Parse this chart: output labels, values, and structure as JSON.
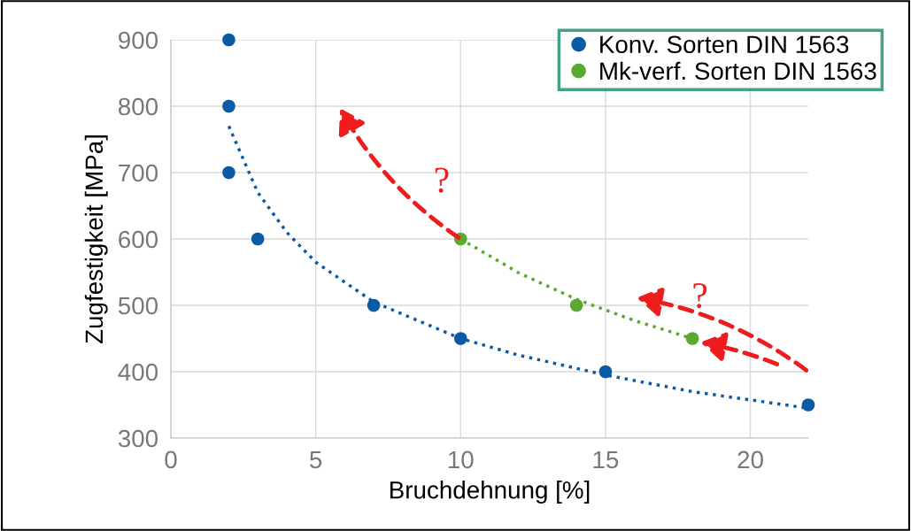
{
  "chart_data": {
    "type": "scatter",
    "xlabel": "Bruchdehnung [%]",
    "ylabel": "Zugfestigkeit [MPa]",
    "xlim": [
      0,
      22
    ],
    "ylim": [
      300,
      900
    ],
    "xticks": [
      0,
      5,
      10,
      15,
      20
    ],
    "yticks": [
      300,
      400,
      500,
      600,
      700,
      800,
      900
    ],
    "grid": true,
    "legend": "top right",
    "marker": "circle",
    "annotations": [
      "?",
      "?"
    ],
    "series": [
      {
        "name": "Konv. Sorten DIN 1563",
        "color": "#0b5aa6",
        "x": [
          2,
          2,
          2,
          3,
          7,
          10,
          15,
          22
        ],
        "values": [
          900,
          800,
          700,
          600,
          500,
          450,
          400,
          350
        ]
      },
      {
        "name": "Mk-verf. Sorten DIN 1563",
        "color": "#5aaa32",
        "x": [
          10,
          14,
          18
        ],
        "values": [
          600,
          500,
          450
        ]
      },
      {
        "type": "line",
        "line_style": "dotted",
        "marker": "none",
        "color": "#0b5aa6",
        "x": [
          2,
          3,
          4,
          5,
          7,
          10,
          12,
          15,
          18,
          22
        ],
        "values": [
          770,
          670,
          610,
          565,
          505,
          450,
          425,
          395,
          370,
          345
        ]
      },
      {
        "type": "line",
        "line_style": "dotted",
        "marker": "none",
        "color": "#5aaa32",
        "x": [
          10,
          12,
          14,
          16,
          18
        ],
        "values": [
          600,
          549,
          509,
          477,
          450
        ]
      }
    ]
  }
}
